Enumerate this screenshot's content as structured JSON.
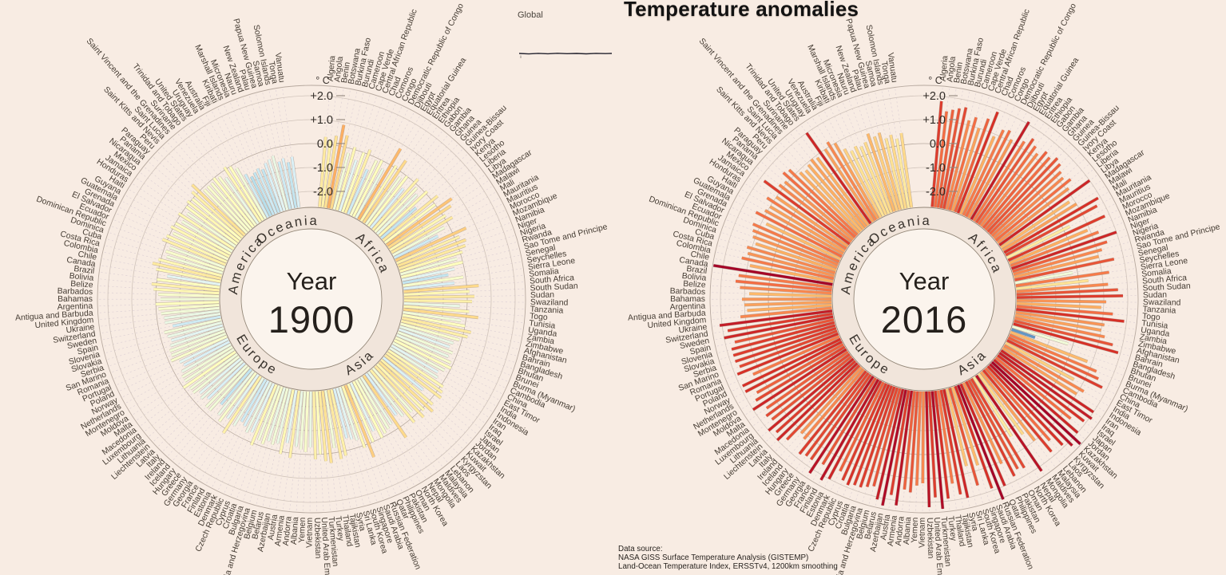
{
  "title": "Temperature anomalies",
  "global_inset": {
    "label": "Global"
  },
  "data_source": {
    "lines": [
      "Data source:",
      "NASA GISS Surface Temperature Analysis (GISTEMP)",
      "Land-Ocean Temperature Index, ERSSTv4, 1200km smoothing"
    ]
  },
  "scale": {
    "unit": "° C",
    "ticks": [
      {
        "label": "+2.0",
        "value": 2
      },
      {
        "label": "+1.0",
        "value": 1
      },
      {
        "label": "0.0",
        "value": 0
      },
      {
        "label": "-1.0",
        "value": -1
      },
      {
        "label": "-2.0",
        "value": -2
      }
    ]
  },
  "charts": [
    {
      "id": "chart-1900",
      "year_label": "Year",
      "year": "1900",
      "series": "1900"
    },
    {
      "id": "chart-2016",
      "year_label": "Year",
      "year": "2016",
      "series": "2016"
    }
  ],
  "chart_data": {
    "type": "bar",
    "coordinate": "radial",
    "unit": "°C",
    "value_range": [
      -2.6,
      2.5
    ],
    "continents": [
      {
        "name": "Africa",
        "countries": [
          "Algeria",
          "Angola",
          "Benin",
          "Botswana",
          "Burkina Faso",
          "Burundi",
          "Cameroon",
          "Cape Verde",
          "Central African Republic",
          "Chad",
          "Comoros",
          "Congo",
          "Democratic Republic of Congo",
          "Djibouti",
          "Egypt",
          "Equatorial Guinea",
          "Eritrea",
          "Ethiopia",
          "Gabon",
          "Gambia",
          "Ghana",
          "Guinea",
          "Guinea-Bissau",
          "Ivory Coast",
          "Kenya",
          "Lesotho",
          "Liberia",
          "Libya",
          "Madagascar",
          "Malawi",
          "Mali",
          "Mauritania",
          "Mauritius",
          "Morocco",
          "Mozambique",
          "Namibia",
          "Niger",
          "Nigeria",
          "Rwanda",
          "Sao Tome and Principe",
          "Senegal",
          "Seychelles",
          "Sierra Leone",
          "Somalia",
          "South Africa",
          "South Sudan",
          "Sudan",
          "Swaziland",
          "Tanzania",
          "Togo",
          "Tunisia",
          "Uganda",
          "Zambia",
          "Zimbabwe"
        ]
      },
      {
        "name": "Asia",
        "countries": [
          "Afghanistan",
          "Bahrain",
          "Bangladesh",
          "Bhutan",
          "Brunei",
          "Burma (Myanmar)",
          "Cambodia",
          "China",
          "East Timor",
          "India",
          "Indonesia",
          "Iran",
          "Iraq",
          "Israel",
          "Japan",
          "Jordan",
          "Kazakhstan",
          "Kuwait",
          "Kyrgyzstan",
          "Laos",
          "Lebanon",
          "Malaysia",
          "Maldives",
          "Mongolia",
          "Nepal",
          "North Korea",
          "Oman",
          "Pakistan",
          "Philippines",
          "Qatar",
          "Russian Federation",
          "Saudi Arabia",
          "Singapore",
          "South Korea",
          "Sri Lanka",
          "Syria",
          "Tajikistan",
          "Thailand",
          "Turkey",
          "Turkmenistan",
          "United Arab Emirates",
          "Uzbekistan",
          "Vietnam",
          "Yemen"
        ]
      },
      {
        "name": "Europe",
        "countries": [
          "Albania",
          "Andorra",
          "Armenia",
          "Austria",
          "Azerbaijan",
          "Belarus",
          "Belgium",
          "Bosnia and Herzegovina",
          "Bulgaria",
          "Croatia",
          "Cyprus",
          "Czech Republic",
          "Denmark",
          "Estonia",
          "Finland",
          "France",
          "Georgia",
          "Germany",
          "Greece",
          "Hungary",
          "Iceland",
          "Ireland",
          "Italy",
          "Latvia",
          "Liechtenstein",
          "Lithuania",
          "Luxembourg",
          "Macedonia",
          "Malta",
          "Moldova",
          "Montenegro",
          "Netherlands",
          "Norway",
          "Poland",
          "Portugal",
          "Romania",
          "San Marino",
          "Serbia",
          "Slovakia",
          "Slovenia",
          "Spain",
          "Sweden",
          "Switzerland",
          "Ukraine",
          "United Kingdom"
        ]
      },
      {
        "name": "America",
        "countries": [
          "Antigua and Barbuda",
          "Argentina",
          "Bahamas",
          "Barbados",
          "Belize",
          "Bolivia",
          "Brazil",
          "Canada",
          "Chile",
          "Colombia",
          "Costa Rica",
          "Cuba",
          "Dominica",
          "Dominican Republic",
          "Ecuador",
          "El Salvador",
          "Grenada",
          "Guatemala",
          "Guyana",
          "Haiti",
          "Honduras",
          "Jamaica",
          "Mexico",
          "Nicaragua",
          "Panama",
          "Paraguay",
          "Peru",
          "Saint Kitts and Nevis",
          "Saint Lucia",
          "Saint Vincent and the Grenadines",
          "Suriname",
          "Trinidad and Tobago",
          "United States",
          "Uruguay",
          "Venezuela"
        ]
      },
      {
        "name": "Oceania",
        "countries": [
          "Australia",
          "Fiji",
          "Kiribati",
          "Marshall Islands",
          "Micronesia",
          "Nauru",
          "New Zealand",
          "Palau",
          "Papua New Guinea",
          "Samoa",
          "Solomon Islands",
          "Tonga",
          "Vanuatu"
        ]
      }
    ],
    "series": [
      {
        "name": "1900",
        "values": [
          0.3,
          0.2,
          0.4,
          0.9,
          0.5,
          -0.2,
          0.1,
          -0.4,
          0.0,
          0.2,
          -0.6,
          -0.1,
          0.0,
          -0.3,
          0.8,
          0.1,
          0.5,
          -0.2,
          0.0,
          -0.5,
          0.2,
          -0.1,
          -0.3,
          0.1,
          -0.7,
          0.3,
          0.0,
          0.7,
          0.5,
          0.1,
          0.3,
          -0.2,
          -0.6,
          0.6,
          0.2,
          0.4,
          0.3,
          0.1,
          -0.2,
          0.0,
          -0.4,
          -0.7,
          -0.1,
          -0.5,
          0.5,
          0.1,
          0.3,
          0.2,
          -0.3,
          0.1,
          0.5,
          -0.2,
          0.0,
          0.3,
          0.2,
          -0.1,
          -0.3,
          -0.4,
          -0.2,
          -0.3,
          -0.1,
          0.0,
          -0.2,
          -0.4,
          -0.3,
          0.1,
          0.2,
          0.3,
          -0.5,
          0.2,
          0.4,
          0.1,
          0.3,
          -0.2,
          0.2,
          -0.3,
          -0.5,
          0.5,
          -0.3,
          -0.2,
          -0.1,
          0.0,
          -0.4,
          0.0,
          0.6,
          0.1,
          -0.3,
          -0.4,
          -0.5,
          0.2,
          0.3,
          -0.2,
          0.4,
          0.3,
          0.0,
          0.2,
          -0.3,
          -0.1,
          -0.2,
          -0.3,
          0.2,
          -0.4,
          0.1,
          -0.3,
          -0.2,
          -0.3,
          -0.1,
          -0.2,
          0.1,
          -0.4,
          -0.3,
          -0.5,
          -0.6,
          -0.3,
          0.2,
          -0.4,
          -0.1,
          -0.3,
          -0.7,
          -0.2,
          -0.2,
          -0.5,
          -0.3,
          -0.4,
          -0.2,
          -0.2,
          0.0,
          -0.2,
          -0.2,
          -0.3,
          -0.5,
          -0.4,
          -0.1,
          -0.2,
          -0.2,
          -0.3,
          -0.4,
          -0.3,
          -0.2,
          -0.6,
          -0.3,
          -0.3,
          -0.2,
          -0.1,
          0.0,
          -0.2,
          -0.1,
          0.1,
          0.2,
          0.0,
          -0.4,
          0.1,
          0.3,
          0.1,
          -0.2,
          -0.1,
          -0.2,
          0.2,
          0.1,
          -0.1,
          0.1,
          0.0,
          -0.2,
          0.1,
          -0.2,
          0.0,
          0.1,
          0.0,
          0.2,
          0.4,
          -0.1,
          -0.1,
          -0.1,
          0.0,
          -0.1,
          -0.3,
          0.1,
          0.0,
          -0.2,
          -0.6,
          -0.8,
          -0.7,
          -0.6,
          -0.7,
          -0.5,
          -0.4,
          -0.3,
          -0.6,
          -0.5,
          -0.7,
          -0.5
        ]
      },
      {
        "name": "2016",
        "values": [
          1.8,
          1.4,
          1.5,
          1.6,
          1.7,
          1.2,
          1.4,
          1.0,
          1.5,
          1.9,
          0.9,
          1.3,
          1.4,
          1.1,
          2.1,
          1.3,
          1.6,
          1.4,
          1.2,
          1.5,
          1.4,
          1.6,
          1.5,
          1.3,
          1.2,
          1.4,
          1.1,
          2.0,
          0.8,
          1.0,
          1.9,
          1.7,
          0.3,
          1.8,
          0.9,
          1.3,
          2.0,
          1.5,
          1.2,
          1.0,
          1.6,
          -0.2,
          1.3,
          0.4,
          1.2,
          1.6,
          1.8,
          1.1,
          0.9,
          1.4,
          1.9,
          1.1,
          1.0,
          1.2,
          1.6,
          1.9,
          -0.2,
          -1.6,
          0.8,
          1.3,
          1.5,
          1.8,
          0.6,
          1.2,
          1.0,
          2.0,
          2.1,
          1.9,
          1.4,
          2.0,
          2.4,
          2.2,
          1.9,
          1.4,
          1.8,
          1.0,
          0.5,
          2.2,
          0.3,
          1.7,
          1.6,
          1.8,
          1.1,
          2.0,
          2.5,
          1.9,
          0.8,
          1.6,
          0.7,
          2.0,
          1.8,
          1.3,
          1.9,
          2.3,
          1.8,
          2.2,
          1.2,
          1.3,
          1.6,
          1.5,
          2.2,
          1.8,
          2.3,
          2.1,
          1.6,
          1.7,
          1.8,
          1.8,
          1.9,
          1.8,
          1.5,
          2.0,
          2.2,
          1.6,
          2.2,
          1.7,
          1.7,
          1.8,
          1.2,
          1.1,
          1.7,
          2.0,
          1.8,
          2.0,
          1.6,
          1.7,
          1.5,
          2.0,
          1.7,
          1.5,
          1.9,
          1.9,
          1.3,
          1.9,
          1.7,
          1.8,
          1.8,
          1.8,
          1.6,
          2.0,
          1.8,
          2.1,
          1.2,
          0.9,
          1.0,
          1.1,
          0.8,
          1.2,
          1.4,
          1.3,
          2.4,
          0.9,
          1.3,
          1.1,
          1.2,
          0.9,
          1.1,
          1.2,
          1.3,
          0.8,
          1.4,
          1.1,
          1.0,
          1.3,
          1.0,
          1.8,
          1.2,
          1.1,
          1.4,
          1.3,
          0.9,
          0.8,
          0.9,
          1.0,
          0.9,
          2.0,
          1.0,
          1.2,
          1.0,
          0.6,
          0.4,
          0.5,
          0.4,
          0.5,
          0.8,
          0.6,
          0.7,
          0.4,
          0.5,
          0.3,
          0.5
        ]
      }
    ],
    "palette": [
      {
        "v": -2.4,
        "c": "#313695"
      },
      {
        "v": -1.9,
        "c": "#4575b4"
      },
      {
        "v": -1.4,
        "c": "#74add1"
      },
      {
        "v": -0.9,
        "c": "#abd9e9"
      },
      {
        "v": -0.45,
        "c": "#e0f3f8"
      },
      {
        "v": 0.0,
        "c": "#ffffbf"
      },
      {
        "v": 0.45,
        "c": "#fee090"
      },
      {
        "v": 0.9,
        "c": "#fdae61"
      },
      {
        "v": 1.4,
        "c": "#f46d43"
      },
      {
        "v": 1.9,
        "c": "#d73027"
      },
      {
        "v": 2.4,
        "c": "#a50026"
      }
    ],
    "colors": {
      "background": "#f8ece3",
      "band": "#f1e5db",
      "inner_circle": "#fbf4ed",
      "grid": "#c9bcb3",
      "grid_strong": "#b7a99f",
      "spoke": "#d8cbd2",
      "ring_outline": "#938778",
      "text": "#453c33",
      "year_text": "#25201c",
      "sparkline": "#23222e"
    }
  }
}
